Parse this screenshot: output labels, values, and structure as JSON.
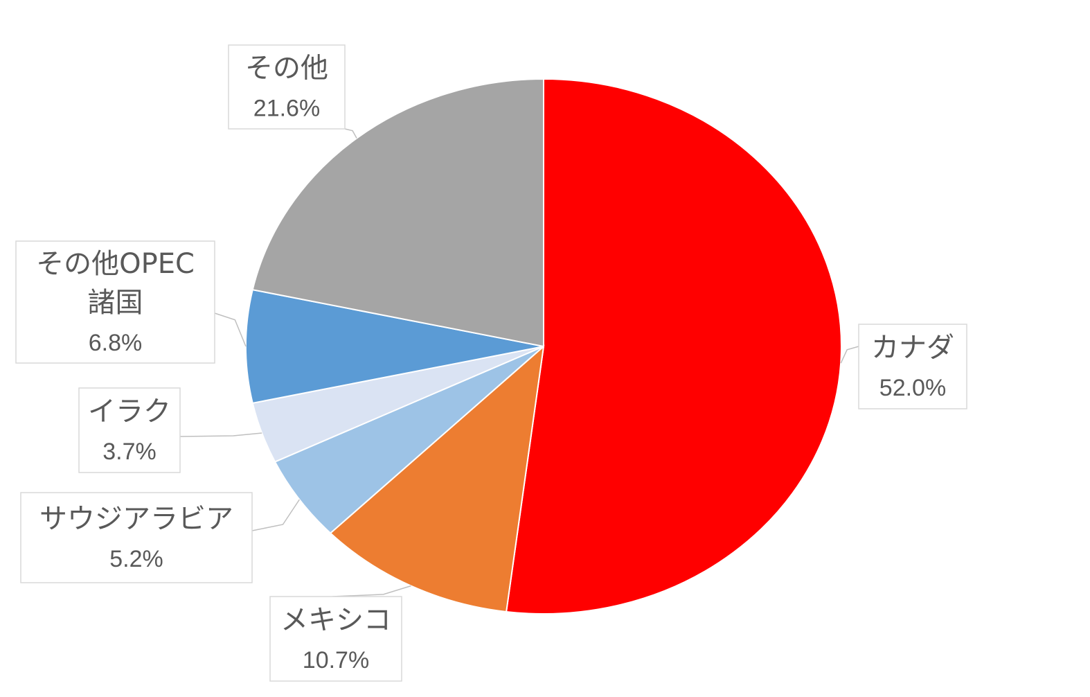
{
  "chart_data": {
    "type": "pie",
    "start_angle_deg": 0,
    "direction": "clockwise",
    "legend": "none",
    "data_labels": "outside, boxed, with leader lines",
    "slices": [
      {
        "label": "カナダ",
        "value": 52.0,
        "value_text": "52.0%",
        "color": "#ff0000"
      },
      {
        "label": "メキシコ",
        "value": 10.7,
        "value_text": "10.7%",
        "color": "#ed7d31"
      },
      {
        "label": "サウジアラビア",
        "value": 5.2,
        "value_text": "5.2%",
        "color": "#9dc3e6"
      },
      {
        "label": "イラク",
        "value": 3.7,
        "value_text": "3.7%",
        "color": "#dae3f3"
      },
      {
        "label": "その他OPEC諸国",
        "label_lines": [
          "その他OPEC",
          "諸国"
        ],
        "value": 6.8,
        "value_text": "6.8%",
        "color": "#5b9bd5"
      },
      {
        "label": "その他",
        "value": 21.6,
        "value_text": "21.6%",
        "color": "#a5a5a5"
      }
    ]
  }
}
